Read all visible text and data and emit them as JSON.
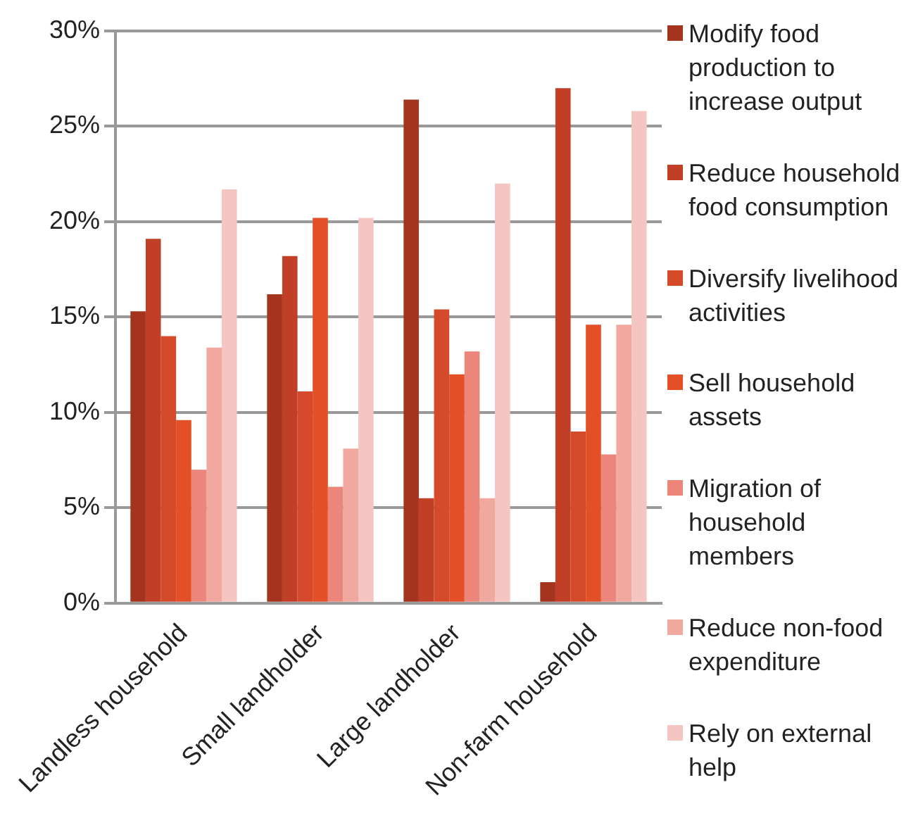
{
  "chart_data": {
    "type": "bar",
    "categories": [
      "Landless household",
      "Small landholder",
      "Large landholder",
      "Non-farm household"
    ],
    "series": [
      {
        "name": "Modify food production to increase output",
        "color": "#a5341f",
        "values": [
          15.3,
          16.2,
          26.4,
          1.1
        ]
      },
      {
        "name": "Reduce household food consumption",
        "color": "#c13f27",
        "values": [
          19.1,
          18.2,
          5.5,
          27.0
        ]
      },
      {
        "name": "Diversify livelihood activities",
        "color": "#d44a2a",
        "values": [
          14.0,
          11.1,
          15.4,
          9.0
        ]
      },
      {
        "name": "Sell household assets",
        "color": "#e34f26",
        "values": [
          9.6,
          20.2,
          12.0,
          14.6
        ]
      },
      {
        "name": "Migration of household members",
        "color": "#ec867a",
        "values": [
          7.0,
          6.1,
          13.2,
          7.8
        ]
      },
      {
        "name": "Reduce non-food expenditure",
        "color": "#f0a89f",
        "values": [
          13.4,
          8.1,
          5.5,
          14.6
        ]
      },
      {
        "name": "Rely on external help",
        "color": "#f5c6c1",
        "values": [
          21.7,
          20.2,
          22.0,
          25.8
        ]
      }
    ],
    "ylim": [
      0,
      30
    ],
    "yticks": [
      {
        "value": 0,
        "label": "0%"
      },
      {
        "value": 5,
        "label": "5%"
      },
      {
        "value": 10,
        "label": "10%"
      },
      {
        "value": 15,
        "label": "15%"
      },
      {
        "value": 20,
        "label": "20%"
      },
      {
        "value": 25,
        "label": "25%"
      },
      {
        "value": 30,
        "label": "30%"
      }
    ],
    "grid": "y",
    "legend": "right"
  }
}
